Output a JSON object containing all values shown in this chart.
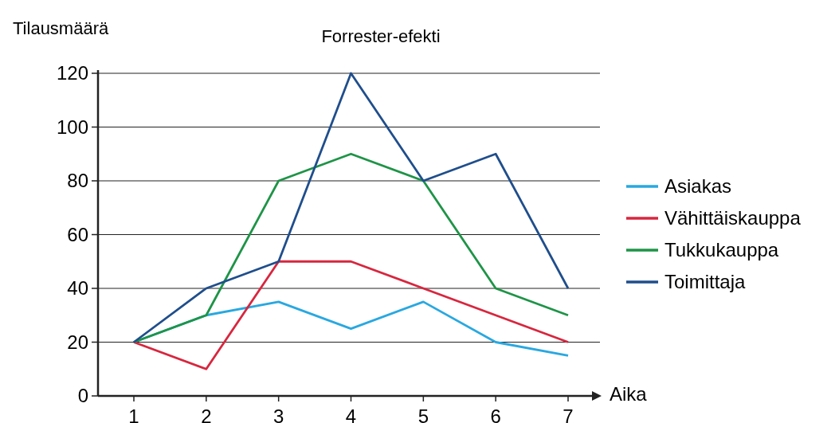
{
  "chart_data": {
    "type": "line",
    "title": "Forrester-efekti",
    "xlabel": "Aika",
    "ylabel": "Tilausmäärä",
    "categories": [
      "1",
      "2",
      "3",
      "4",
      "5",
      "6",
      "7"
    ],
    "series": [
      {
        "name": "Asiakas",
        "color": "#29a8e0",
        "values": [
          20,
          30,
          35,
          25,
          35,
          20,
          15
        ]
      },
      {
        "name": "Vähittäiskauppa",
        "color": "#d8263e",
        "values": [
          20,
          10,
          50,
          50,
          40,
          30,
          20
        ]
      },
      {
        "name": "Tukkukauppa",
        "color": "#1e9447",
        "values": [
          20,
          30,
          80,
          90,
          80,
          40,
          30
        ]
      },
      {
        "name": "Toimittaja",
        "color": "#1f4e8c",
        "values": [
          20,
          40,
          50,
          120,
          80,
          90,
          40
        ]
      }
    ],
    "ylim": [
      0,
      120
    ],
    "yticks": [
      0,
      20,
      40,
      60,
      80,
      100,
      120
    ],
    "grid": "y",
    "legend": "right",
    "marker": "none",
    "line_style": "solid"
  }
}
